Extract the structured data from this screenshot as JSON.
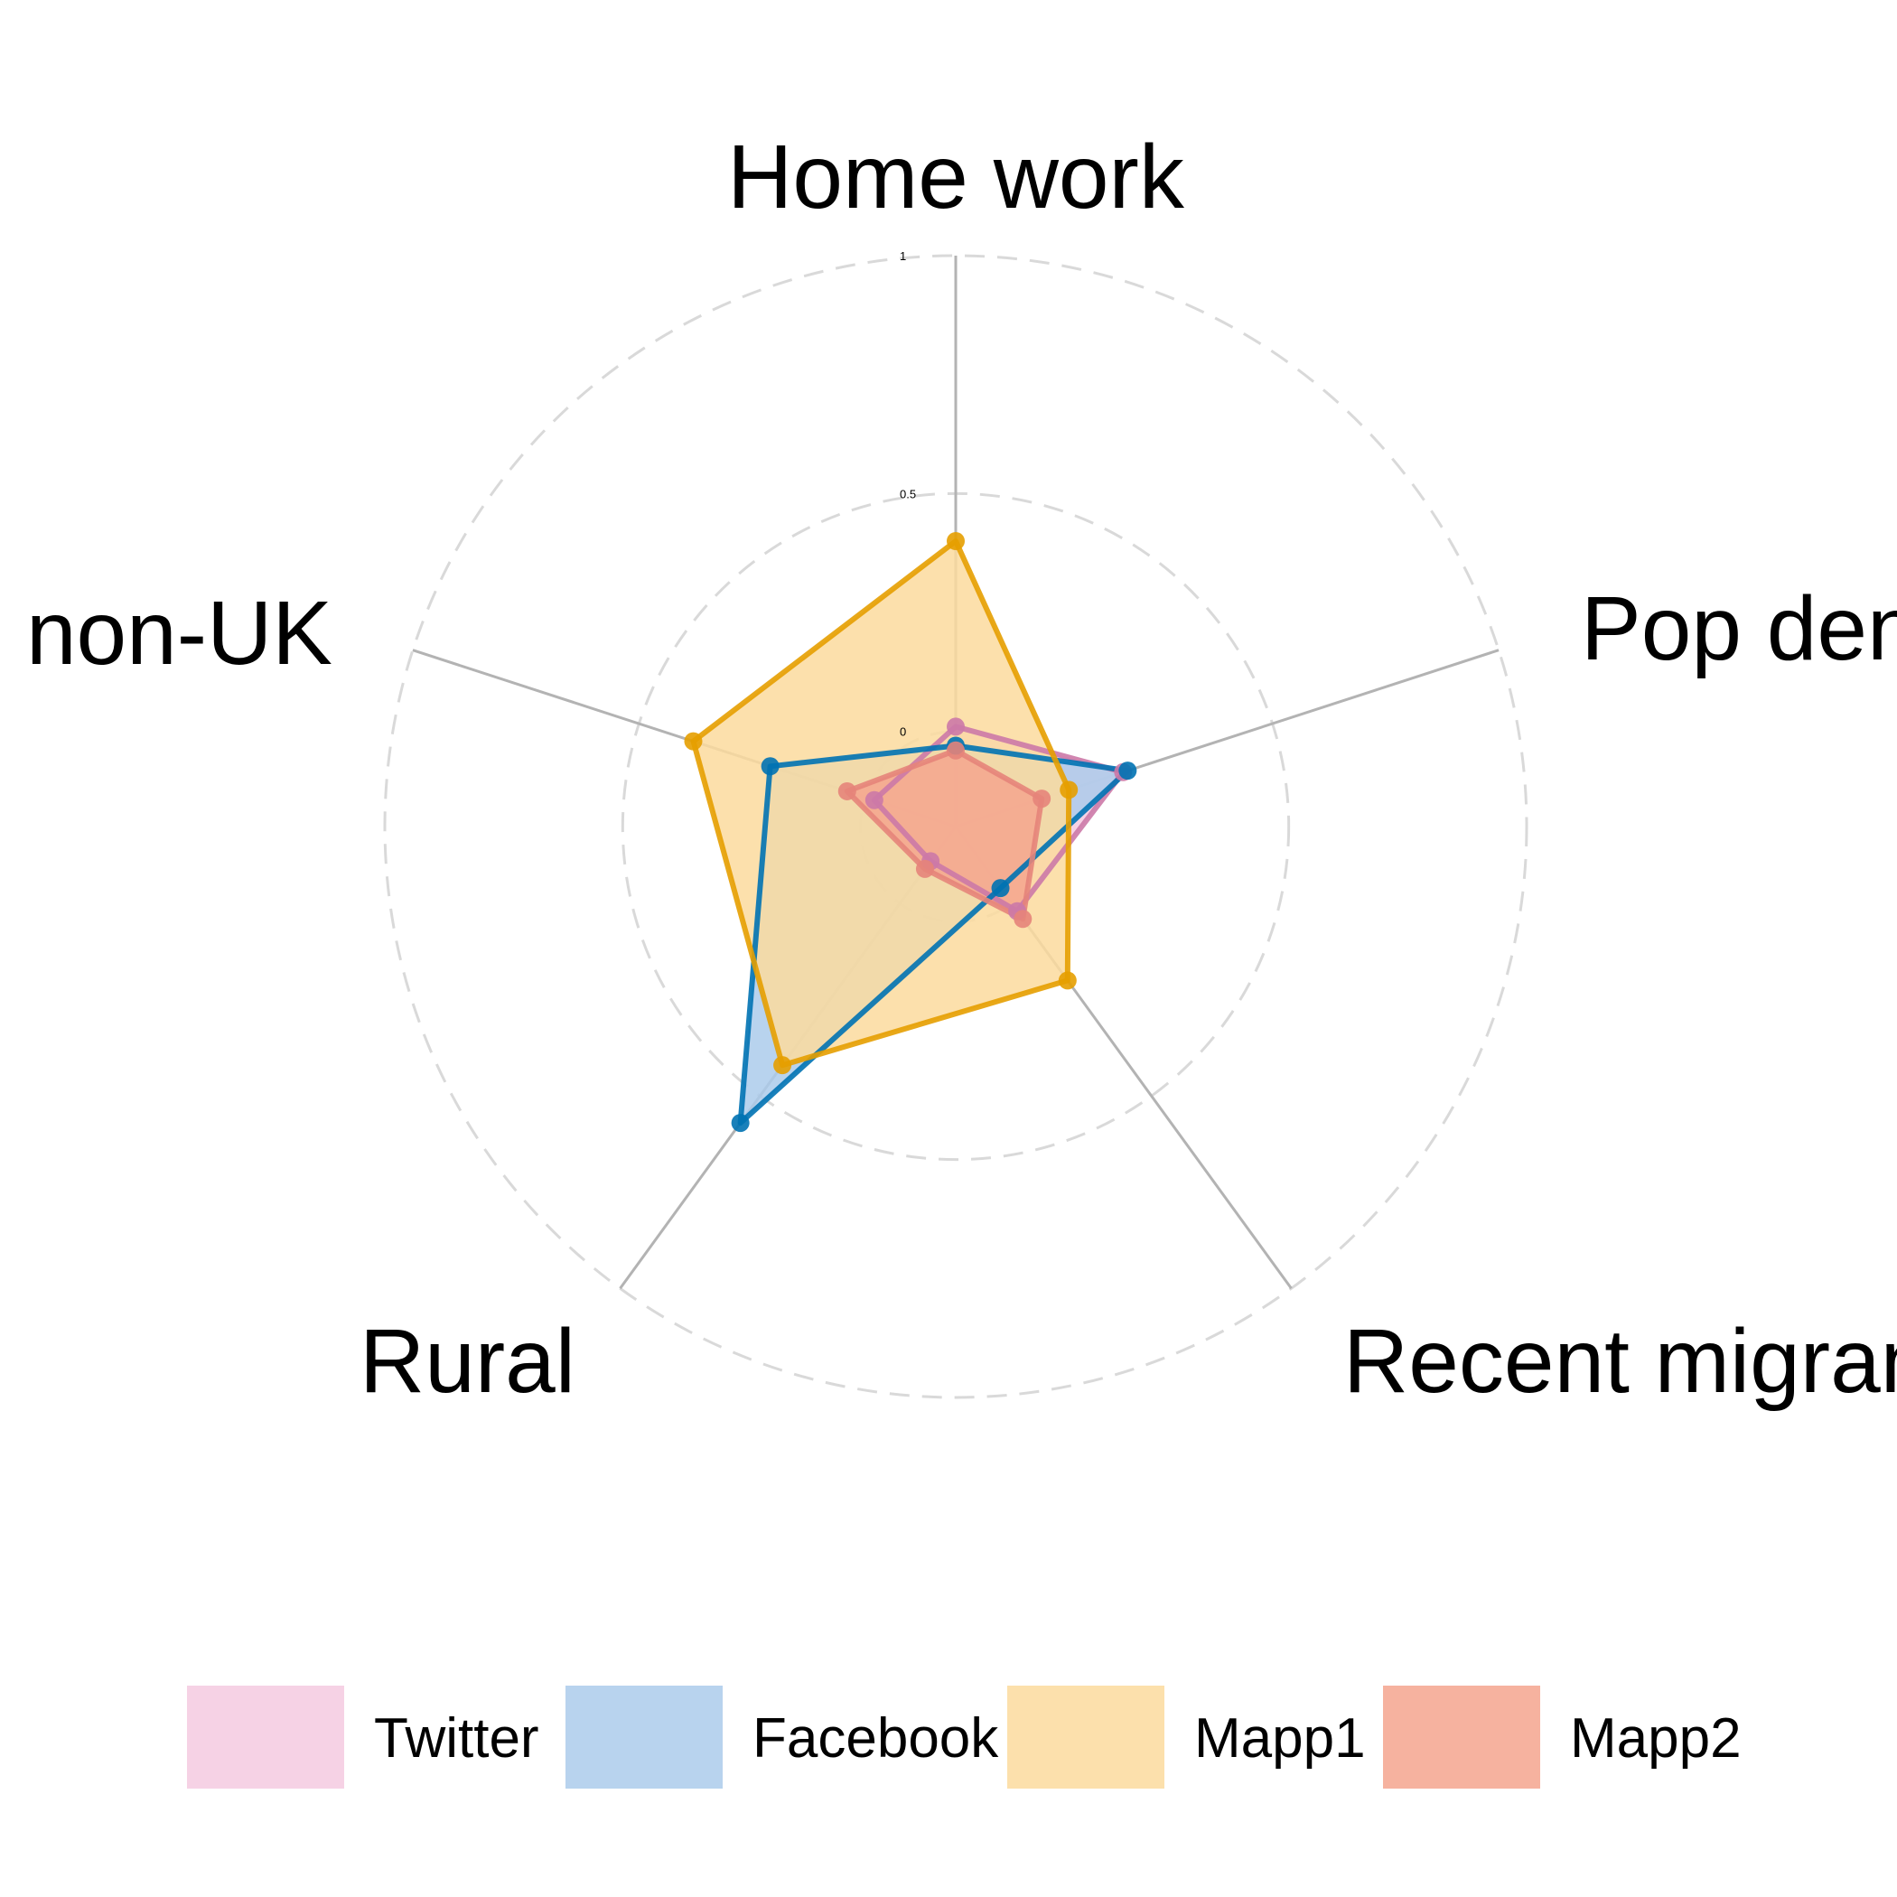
{
  "chart_data": {
    "type": "radar",
    "axes": [
      "Home work",
      "Pop density",
      "Recent migrants",
      "Rural",
      "non-UK"
    ],
    "axis_label_text": [
      "Home work",
      "Pop dens",
      "Recent migrant",
      "Rural",
      "non-UK"
    ],
    "range": [
      -0.2,
      1
    ],
    "ticks": [
      {
        "value": 0,
        "label": "0"
      },
      {
        "value": 0.5,
        "label": "0.5"
      },
      {
        "value": 1,
        "label": "1"
      }
    ],
    "grid": "dashed circles",
    "legend_position": "bottom",
    "series": [
      {
        "name": "Twitter",
        "values": [
          0.01,
          0.17,
          0.02,
          -0.11,
          -0.02
        ],
        "color": "#CC79A7",
        "fill": "#F4CAE0"
      },
      {
        "name": "Facebook",
        "values": [
          -0.03,
          0.18,
          -0.04,
          0.57,
          0.21
        ],
        "color": "#0072B2",
        "fill": "#ABCBEB"
      },
      {
        "name": "Mapp1",
        "values": [
          0.4,
          0.05,
          0.2,
          0.42,
          0.38
        ],
        "color": "#E69F00",
        "fill": "#FCDB9E"
      },
      {
        "name": "Mapp2",
        "values": [
          -0.04,
          -0.01,
          0.04,
          -0.09,
          0.04
        ],
        "color": "#E6847A",
        "fill": "#F4A58E"
      }
    ]
  }
}
